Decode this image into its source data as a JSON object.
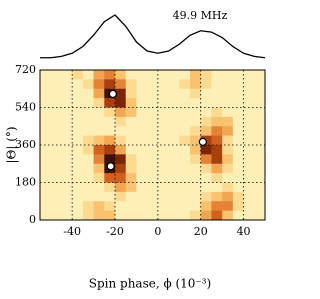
{
  "chart_data": [
    {
      "type": "line",
      "annotation": "49.9 MHz",
      "x": [
        -55,
        -50,
        -45,
        -40,
        -35,
        -30,
        -25,
        -20,
        -15,
        -10,
        -5,
        0,
        5,
        10,
        15,
        20,
        25,
        30,
        35,
        40,
        45,
        50
      ],
      "values": [
        0.05,
        0.05,
        0.08,
        0.15,
        0.3,
        0.55,
        0.85,
        1.0,
        0.75,
        0.4,
        0.2,
        0.15,
        0.2,
        0.35,
        0.55,
        0.65,
        0.62,
        0.5,
        0.3,
        0.15,
        0.08,
        0.05
      ],
      "color": "#000000"
    },
    {
      "type": "heatmap",
      "xlabel": "Spin phase, ϕ (10⁻³)",
      "ylabel": "|Θ| (°)",
      "xlim": [
        -55,
        50
      ],
      "ylim": [
        0,
        720
      ],
      "xticks": [
        -40,
        -20,
        0,
        20,
        40
      ],
      "yticks": [
        0,
        180,
        360,
        540,
        720
      ],
      "grid": true,
      "x": [
        -52.5,
        -47.5,
        -42.5,
        -37.5,
        -32.5,
        -27.5,
        -22.5,
        -17.5,
        -12.5,
        -7.5,
        -2.5,
        2.5,
        7.5,
        12.5,
        17.5,
        22.5,
        27.5,
        32.5,
        37.5,
        42.5,
        47.5
      ],
      "y": [
        697.5,
        652.5,
        607.5,
        562.5,
        517.5,
        472.5,
        427.5,
        382.5,
        337.5,
        292.5,
        247.5,
        202.5,
        157.5,
        112.5,
        67.5,
        22.5
      ],
      "values": [
        [
          1,
          1,
          1,
          2,
          1,
          4,
          5,
          3,
          1,
          1,
          1,
          1,
          1,
          1,
          3,
          2,
          1,
          1,
          1,
          1,
          1
        ],
        [
          1,
          1,
          1,
          1,
          2,
          5,
          7,
          5,
          2,
          1,
          1,
          1,
          1,
          2,
          3,
          2,
          1,
          1,
          1,
          1,
          1
        ],
        [
          1,
          1,
          1,
          1,
          1,
          4,
          9,
          8,
          2,
          1,
          1,
          1,
          1,
          1,
          2,
          1,
          1,
          1,
          1,
          1,
          1
        ],
        [
          1,
          1,
          1,
          1,
          1,
          2,
          7,
          8,
          3,
          1,
          1,
          1,
          1,
          1,
          1,
          1,
          1,
          1,
          1,
          1,
          1
        ],
        [
          1,
          1,
          1,
          1,
          1,
          1,
          2,
          4,
          3,
          1,
          1,
          1,
          1,
          1,
          1,
          1,
          2,
          1,
          1,
          1,
          1
        ],
        [
          1,
          1,
          1,
          1,
          1,
          1,
          1,
          2,
          1,
          1,
          1,
          1,
          1,
          1,
          1,
          2,
          3,
          3,
          1,
          1,
          1
        ],
        [
          1,
          1,
          1,
          1,
          1,
          1,
          1,
          1,
          1,
          1,
          1,
          1,
          1,
          1,
          2,
          3,
          5,
          4,
          1,
          1,
          1
        ],
        [
          1,
          1,
          1,
          1,
          2,
          3,
          4,
          2,
          1,
          1,
          1,
          1,
          1,
          2,
          3,
          7,
          6,
          2,
          1,
          1,
          1
        ],
        [
          1,
          1,
          1,
          1,
          2,
          6,
          7,
          4,
          1,
          1,
          1,
          1,
          1,
          1,
          3,
          8,
          7,
          2,
          1,
          1,
          1
        ],
        [
          1,
          1,
          1,
          1,
          1,
          5,
          9,
          8,
          2,
          1,
          1,
          1,
          1,
          1,
          2,
          5,
          7,
          3,
          1,
          1,
          1
        ],
        [
          1,
          1,
          1,
          1,
          1,
          3,
          9,
          7,
          2,
          1,
          1,
          1,
          1,
          1,
          1,
          2,
          4,
          2,
          1,
          1,
          1
        ],
        [
          1,
          1,
          1,
          1,
          1,
          2,
          6,
          6,
          3,
          1,
          1,
          1,
          1,
          1,
          1,
          1,
          2,
          1,
          1,
          1,
          1
        ],
        [
          1,
          1,
          1,
          1,
          1,
          1,
          2,
          4,
          3,
          1,
          1,
          1,
          1,
          1,
          1,
          1,
          1,
          2,
          1,
          1,
          1
        ],
        [
          1,
          1,
          1,
          1,
          1,
          1,
          1,
          2,
          1,
          1,
          1,
          1,
          1,
          1,
          1,
          2,
          3,
          4,
          2,
          1,
          1
        ],
        [
          1,
          1,
          1,
          1,
          2,
          3,
          2,
          1,
          1,
          1,
          1,
          1,
          1,
          1,
          1,
          3,
          5,
          5,
          2,
          1,
          1
        ],
        [
          1,
          1,
          1,
          1,
          2,
          3,
          3,
          1,
          1,
          1,
          1,
          1,
          1,
          1,
          2,
          4,
          6,
          3,
          1,
          1,
          1
        ]
      ],
      "points": {
        "x": [
          -21,
          21,
          -22
        ],
        "y": [
          605,
          375,
          258
        ]
      }
    }
  ]
}
